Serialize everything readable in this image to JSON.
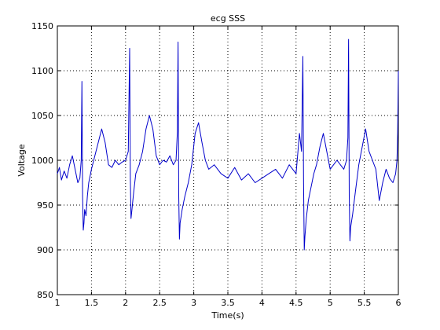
{
  "chart_data": {
    "type": "line",
    "title": "ecg SSS",
    "xlabel": "Time(s)",
    "ylabel": "Voltage",
    "xlim": [
      1,
      6
    ],
    "ylim": [
      850,
      1150
    ],
    "xticks": [
      1,
      1.5,
      2,
      2.5,
      3,
      3.5,
      4,
      4.5,
      5,
      5.5,
      6
    ],
    "yticks": [
      850,
      900,
      950,
      1000,
      1050,
      1100,
      1150
    ],
    "xtick_labels": [
      "1",
      "1.5",
      "2",
      "2.5",
      "3",
      "3.5",
      "4",
      "4.5",
      "5",
      "5.5",
      "6"
    ],
    "ytick_labels": [
      "850",
      "900",
      "950",
      "1000",
      "1050",
      "1100",
      "1150"
    ],
    "grid": true,
    "line_color": "#0000cc",
    "series": [
      {
        "x": [
          1.0,
          1.03,
          1.06,
          1.1,
          1.14,
          1.18,
          1.22,
          1.26,
          1.3,
          1.33,
          1.35,
          1.36,
          1.37,
          1.38,
          1.39,
          1.4,
          1.42,
          1.44,
          1.46,
          1.5,
          1.55,
          1.6,
          1.65,
          1.7,
          1.75,
          1.8,
          1.85,
          1.9,
          1.95,
          2.0,
          2.04,
          2.06,
          2.07,
          2.08,
          2.09,
          2.1,
          2.12,
          2.15,
          2.2,
          2.25,
          2.3,
          2.35,
          2.4,
          2.45,
          2.5,
          2.55,
          2.6,
          2.65,
          2.7,
          2.74,
          2.76,
          2.77,
          2.78,
          2.79,
          2.8,
          2.83,
          2.87,
          2.92,
          2.97,
          3.02,
          3.07,
          3.12,
          3.17,
          3.22,
          3.3,
          3.4,
          3.5,
          3.6,
          3.7,
          3.8,
          3.9,
          4.0,
          4.1,
          4.2,
          4.3,
          4.4,
          4.5,
          4.55,
          4.58,
          4.6,
          4.61,
          4.62,
          4.63,
          4.65,
          4.68,
          4.72,
          4.76,
          4.8,
          4.85,
          4.9,
          4.95,
          5.0,
          5.05,
          5.1,
          5.15,
          5.2,
          5.24,
          5.26,
          5.27,
          5.28,
          5.29,
          5.3,
          5.33,
          5.37,
          5.42,
          5.47,
          5.52,
          5.57,
          5.62,
          5.67,
          5.72,
          5.77,
          5.82,
          5.87,
          5.92,
          5.96,
          5.98,
          5.99,
          6.0
        ],
        "y": [
          985,
          992,
          978,
          988,
          980,
          995,
          1005,
          990,
          975,
          980,
          1000,
          1088,
          960,
          922,
          930,
          945,
          938,
          960,
          975,
          990,
          1005,
          1020,
          1035,
          1020,
          995,
          992,
          1000,
          995,
          998,
          1000,
          1010,
          1125,
          980,
          935,
          942,
          950,
          965,
          985,
          995,
          1010,
          1035,
          1050,
          1035,
          1005,
          995,
          1000,
          998,
          1005,
          995,
          1000,
          1032,
          1132,
          960,
          912,
          930,
          945,
          960,
          975,
          995,
          1030,
          1042,
          1020,
          1000,
          990,
          995,
          985,
          980,
          992,
          978,
          985,
          975,
          980,
          985,
          990,
          980,
          995,
          985,
          1030,
          1010,
          1116,
          975,
          900,
          915,
          935,
          955,
          970,
          985,
          995,
          1015,
          1030,
          1010,
          990,
          995,
          1000,
          995,
          990,
          1000,
          1025,
          1135,
          960,
          910,
          925,
          940,
          965,
          995,
          1015,
          1035,
          1010,
          1000,
          990,
          955,
          975,
          990,
          980,
          975,
          985,
          1000,
          1030,
          1100
        ]
      }
    ]
  }
}
